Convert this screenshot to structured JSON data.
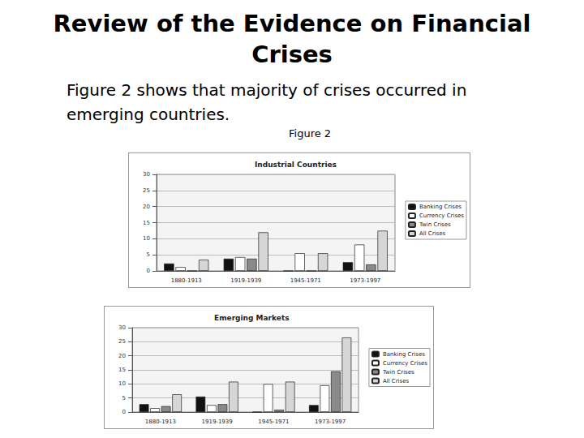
{
  "header": {
    "title": "Review of the Evidence on Financial Crises",
    "text": "Figure 2 shows that majority of crises occurred in emerging countries.",
    "figure_label": "Figure 2"
  },
  "chart_data": [
    {
      "type": "bar",
      "title": "Industrial Countries",
      "categories": [
        "1880-1913",
        "1919-1939",
        "1945-1971",
        "1973-1997"
      ],
      "series": [
        {
          "name": "Banking Crises",
          "color": "#111111",
          "values": [
            2.3,
            3.8,
            0,
            2.7
          ]
        },
        {
          "name": "Currency Crises",
          "color": "#ffffff",
          "values": [
            1.2,
            4.3,
            5.5,
            8.2
          ]
        },
        {
          "name": "Twin Crises",
          "color": "#8a8a8a",
          "values": [
            0,
            3.8,
            0,
            2.0
          ]
        },
        {
          "name": "All Crises",
          "color": "#d6d6d6",
          "values": [
            3.5,
            12.0,
            5.5,
            12.5
          ]
        }
      ],
      "ylim": [
        0,
        30
      ],
      "yticks": [
        0,
        5,
        10,
        15,
        20,
        25,
        30
      ],
      "grid": true,
      "legend": "right"
    },
    {
      "type": "bar",
      "title": "Emerging Markets",
      "categories": [
        "1880-1913",
        "1919-1939",
        "1945-1971",
        "1973-1997"
      ],
      "series": [
        {
          "name": "Banking Crises",
          "color": "#111111",
          "values": [
            2.8,
            5.5,
            0,
            2.5
          ]
        },
        {
          "name": "Currency Crises",
          "color": "#ffffff",
          "values": [
            1.4,
            2.5,
            10.0,
            9.5
          ]
        },
        {
          "name": "Twin Crises",
          "color": "#8a8a8a",
          "values": [
            2.1,
            2.8,
            0.8,
            14.5
          ]
        },
        {
          "name": "All Crises",
          "color": "#d6d6d6",
          "values": [
            6.3,
            10.8,
            10.8,
            26.5
          ]
        }
      ],
      "ylim": [
        0,
        30
      ],
      "yticks": [
        0,
        5,
        10,
        15,
        20,
        25,
        30
      ],
      "grid": true,
      "legend": "right"
    }
  ]
}
